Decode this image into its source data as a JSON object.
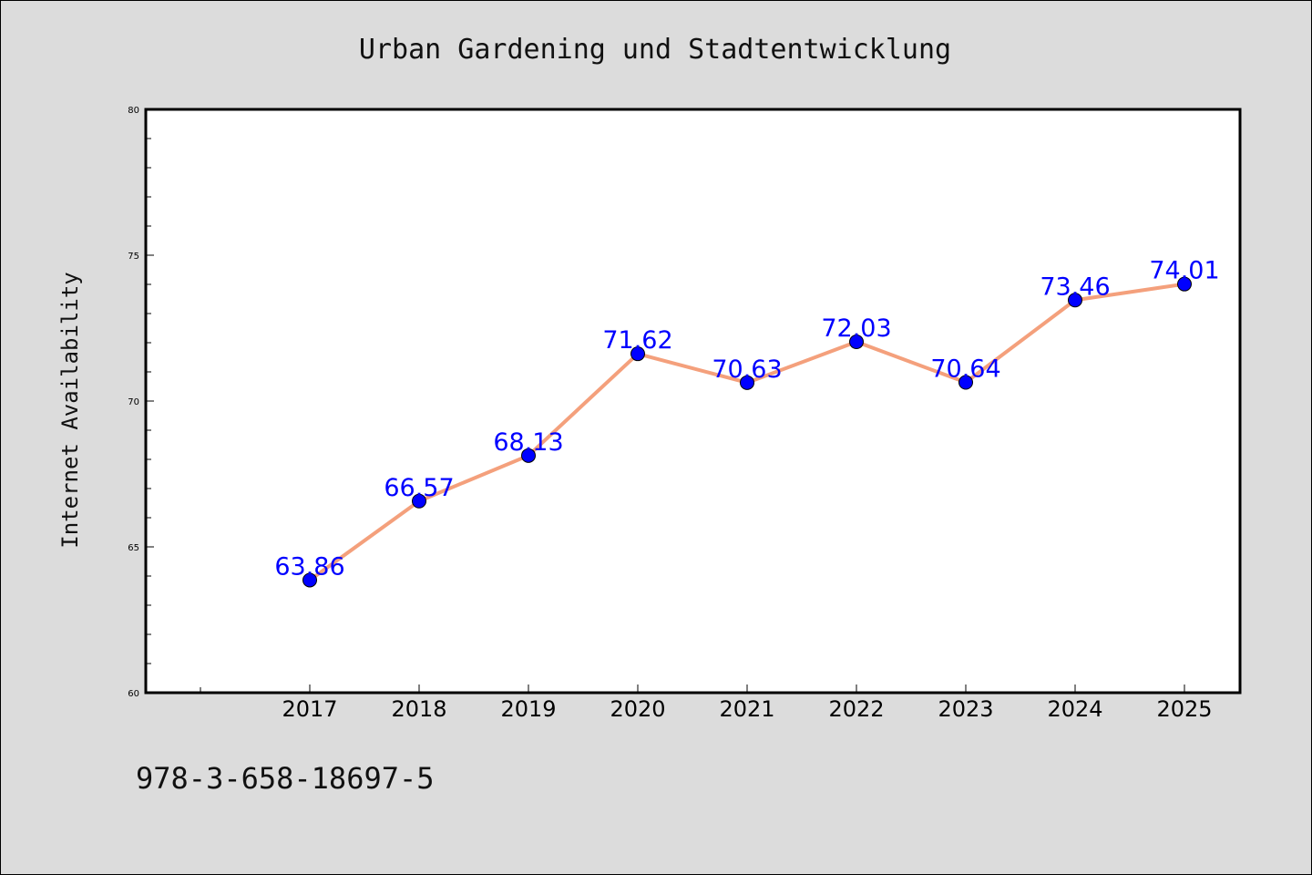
{
  "chart_data": {
    "type": "line",
    "title": "Urban Gardening und Stadtentwicklung",
    "xlabel": "",
    "ylabel": "Internet Availability",
    "x": [
      "2017",
      "2018",
      "2019",
      "2020",
      "2021",
      "2022",
      "2023",
      "2024",
      "2025"
    ],
    "series": [
      {
        "values": [
          63.86,
          66.57,
          68.13,
          71.62,
          70.63,
          72.03,
          70.64,
          73.46,
          74.01
        ],
        "data_labels": [
          "63.86",
          "66.57",
          "68.13",
          "71.62",
          "70.63",
          "72.03",
          "70.64",
          "73.46",
          "74.01"
        ],
        "line_color": "#f4a07c",
        "marker_color": "#0000ff"
      }
    ],
    "ylim": [
      60,
      80
    ],
    "yticks": [
      "60",
      "65",
      "70",
      "75",
      "80"
    ],
    "grid": false,
    "legend": "none"
  },
  "footer": {
    "isbn": "978-3-658-18697-5"
  },
  "colors": {
    "background": "#dcdcdc",
    "plot_area": "#ffffff",
    "line": "#f4a07c",
    "marker": "#0000ff",
    "data_label": "#0000ff"
  }
}
